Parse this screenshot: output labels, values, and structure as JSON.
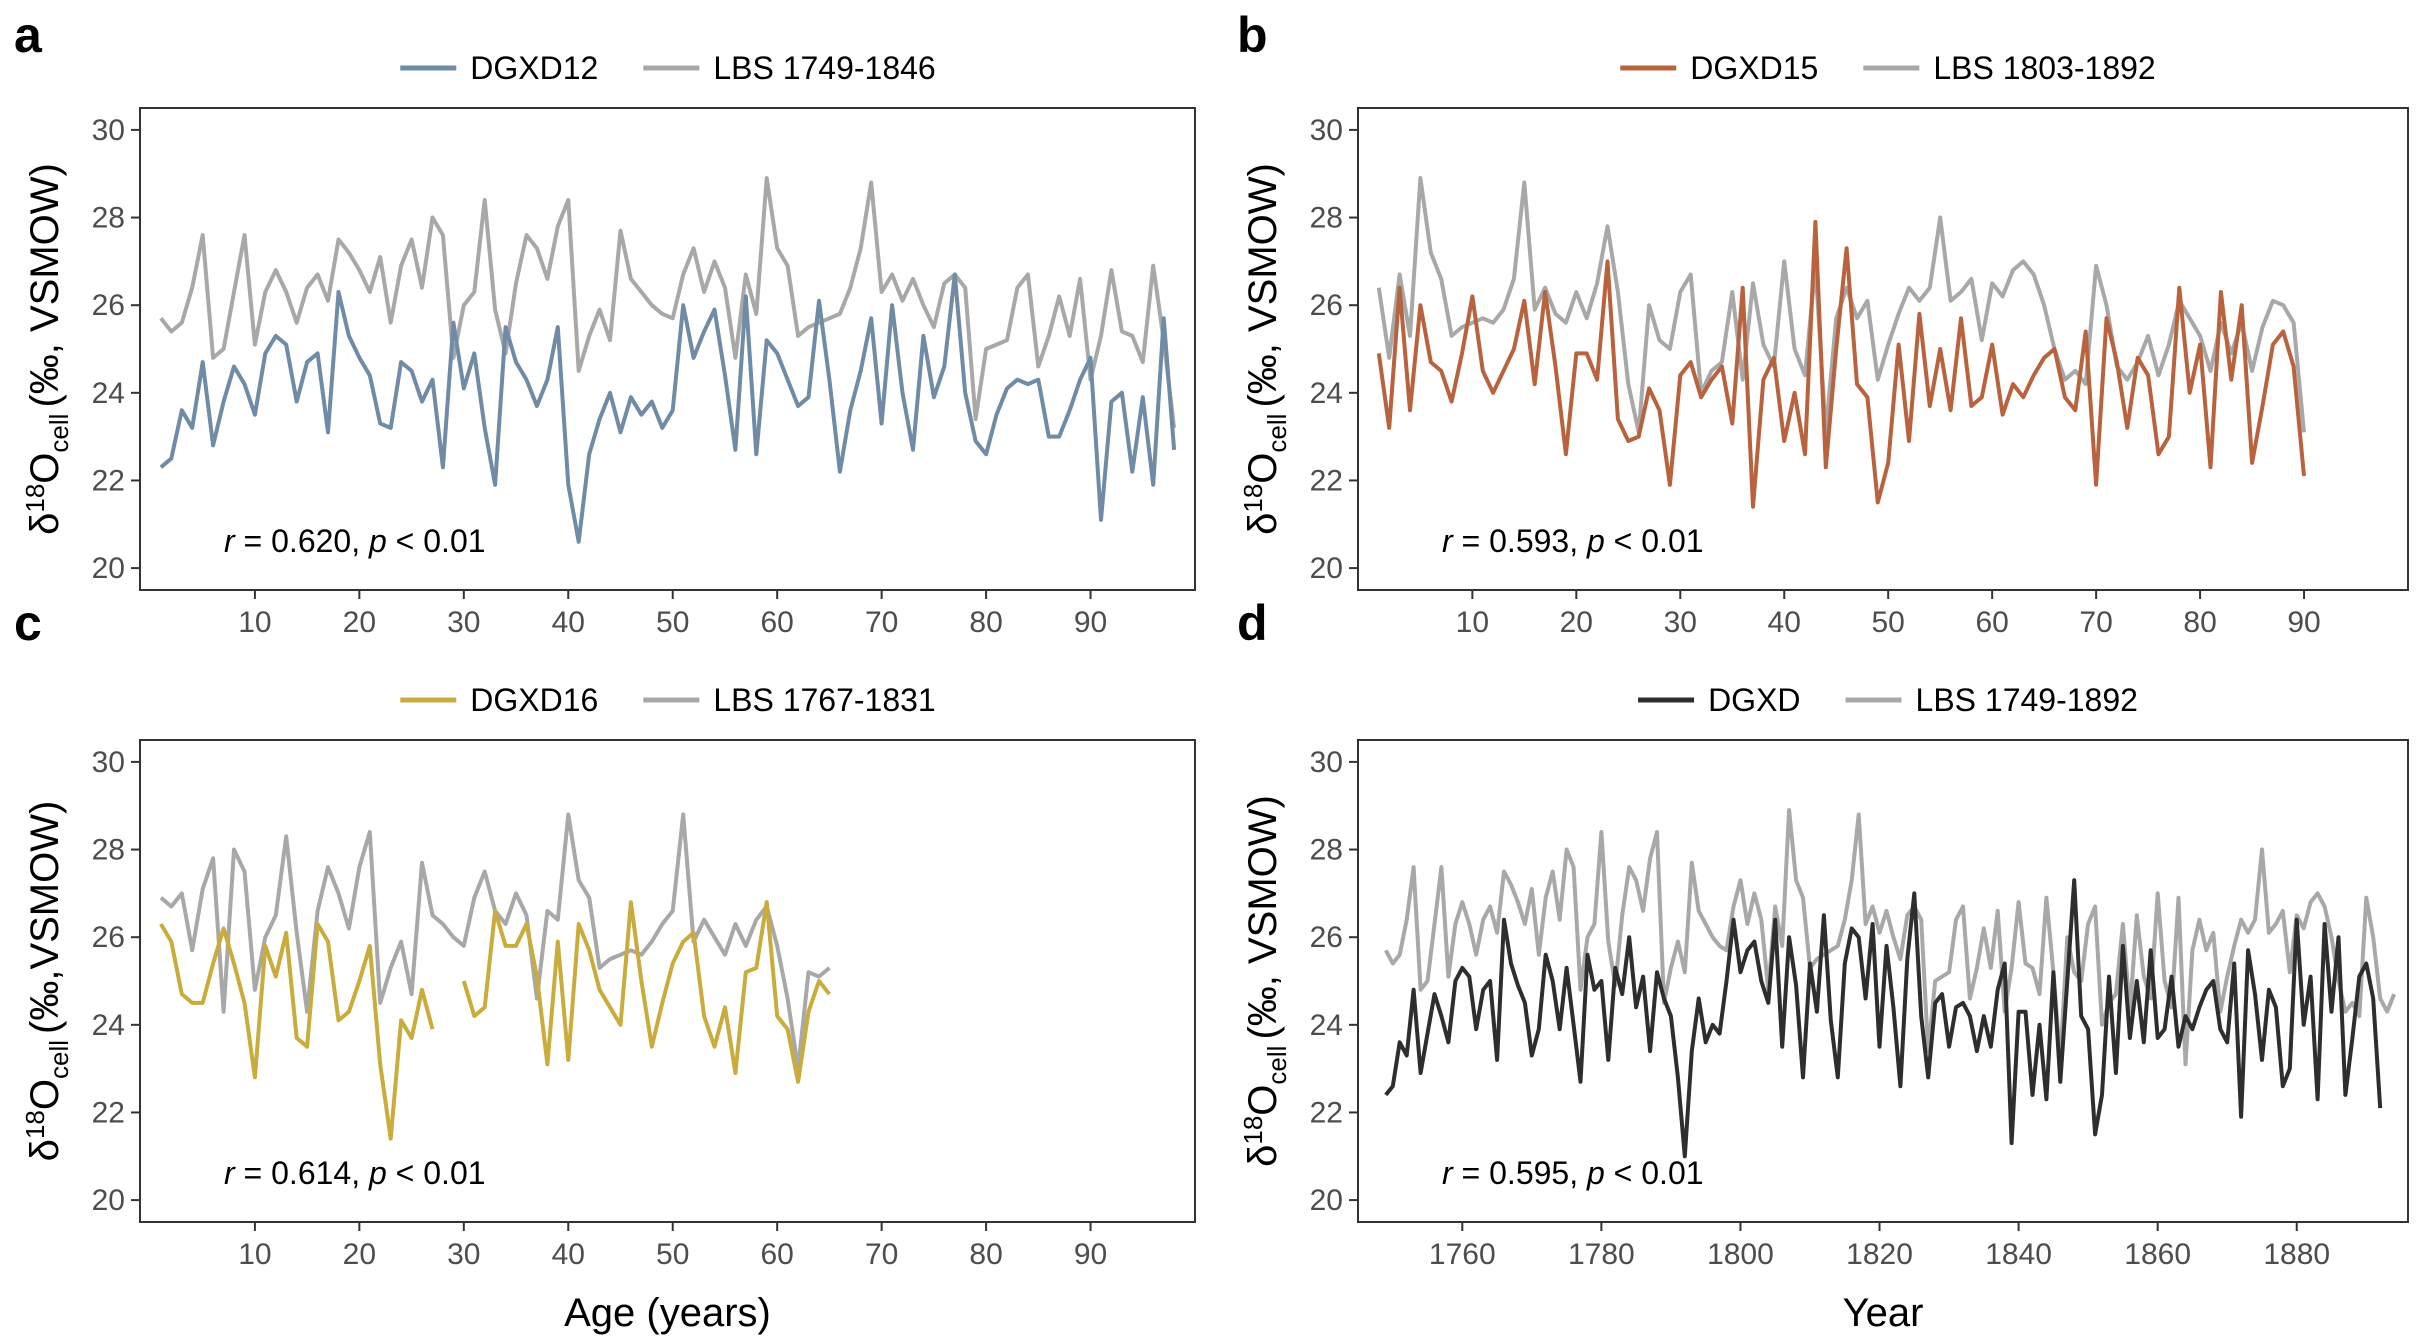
{
  "colors": {
    "gray": "#a8a8a8",
    "blue": "#6f8ba6",
    "orange": "#b8633e",
    "yellow": "#c9ac3c",
    "black": "#2e2e2e"
  },
  "chart_data": [
    {
      "type": "line",
      "panel": "a",
      "xlabel": "",
      "ylabel": "δ18Ocell (‰, VSMOW)",
      "ylabel_parts": {
        "delta": "δ",
        "sup": "18",
        "O": "O",
        "sub": "cell",
        "rest": "(‰, VSMOW)"
      },
      "xlim": [
        -1,
        100
      ],
      "ylim": [
        19.5,
        30.5
      ],
      "xticks": [
        10,
        20,
        30,
        40,
        50,
        60,
        70,
        80,
        90
      ],
      "yticks": [
        20,
        22,
        24,
        26,
        28,
        30
      ],
      "stat": {
        "r": "r",
        "r_val": " = 0.620, ",
        "p": "p",
        "p_val": " < 0.01"
      },
      "series": [
        {
          "name": "DGXD12",
          "color": "blue",
          "x_start": 1,
          "values": [
            22.3,
            22.5,
            23.6,
            23.2,
            24.7,
            22.8,
            23.8,
            24.6,
            24.2,
            23.5,
            24.9,
            25.3,
            25.1,
            23.8,
            24.7,
            24.9,
            23.1,
            26.3,
            25.3,
            24.8,
            24.4,
            23.3,
            23.2,
            24.7,
            24.5,
            23.8,
            24.3,
            22.3,
            25.6,
            24.1,
            24.9,
            23.2,
            21.9,
            25.5,
            24.7,
            24.3,
            23.7,
            24.3,
            25.5,
            21.9,
            20.6,
            22.6,
            23.4,
            24.0,
            23.1,
            23.9,
            23.5,
            23.8,
            23.2,
            23.6,
            26.0,
            24.8,
            25.4,
            25.9,
            24.4,
            22.7,
            26.2,
            22.6,
            25.2,
            24.9,
            24.3,
            23.7,
            23.9,
            26.1,
            24.3,
            22.2,
            23.6,
            24.5,
            25.7,
            23.3,
            26.0,
            24.0,
            22.7,
            25.3,
            23.9,
            24.6,
            26.7,
            24.0,
            22.9,
            22.6,
            23.5,
            24.1,
            24.3,
            24.2,
            24.3,
            23.0,
            23.0,
            23.6,
            24.3,
            24.8,
            21.1,
            23.8,
            24.0,
            22.2,
            23.9,
            21.9,
            25.7,
            22.7
          ]
        },
        {
          "name": "LBS 1749-1846",
          "color": "gray",
          "x_start": 1,
          "values": [
            25.7,
            25.4,
            25.6,
            26.4,
            27.6,
            24.8,
            25.0,
            26.3,
            27.6,
            25.1,
            26.3,
            26.8,
            26.3,
            25.6,
            26.4,
            26.7,
            26.1,
            27.5,
            27.2,
            26.8,
            26.3,
            27.1,
            25.6,
            26.9,
            27.5,
            26.4,
            28.0,
            27.6,
            24.8,
            26.0,
            26.3,
            28.4,
            25.9,
            24.9,
            26.5,
            27.6,
            27.3,
            26.6,
            27.8,
            28.4,
            24.5,
            25.3,
            25.9,
            25.2,
            27.7,
            26.6,
            26.3,
            26.0,
            25.8,
            25.7,
            26.7,
            27.3,
            26.3,
            27.0,
            26.4,
            24.8,
            26.7,
            25.8,
            28.9,
            27.3,
            26.9,
            25.3,
            25.5,
            25.6,
            25.7,
            25.8,
            26.4,
            27.3,
            28.8,
            26.3,
            26.7,
            26.1,
            26.6,
            26.0,
            25.5,
            26.5,
            26.7,
            26.4,
            23.4,
            25.0,
            25.1,
            25.2,
            26.4,
            26.7,
            24.6,
            25.3,
            26.2,
            25.3,
            26.6,
            24.3,
            25.3,
            26.8,
            25.4,
            25.3,
            24.7,
            26.9,
            25.2,
            23.2
          ]
        }
      ]
    },
    {
      "type": "line",
      "panel": "b",
      "xlabel": "",
      "ylabel": "δ18Ocell (‰, VSMOW)",
      "ylabel_parts": {
        "delta": "δ",
        "sup": "18",
        "O": "O",
        "sub": "cell",
        "rest": "(‰, VSMOW)"
      },
      "xlim": [
        -1,
        100
      ],
      "ylim": [
        19.5,
        30.5
      ],
      "xticks": [
        10,
        20,
        30,
        40,
        50,
        60,
        70,
        80,
        90
      ],
      "yticks": [
        20,
        22,
        24,
        26,
        28,
        30
      ],
      "stat": {
        "r": "r",
        "r_val": " = 0.593, ",
        "p": "p",
        "p_val": " < 0.01"
      },
      "series": [
        {
          "name": "DGXD15",
          "color": "orange",
          "x_start": 1,
          "values": [
            24.9,
            23.2,
            26.4,
            23.6,
            26.0,
            24.7,
            24.5,
            23.8,
            24.9,
            26.2,
            24.5,
            24.0,
            24.5,
            25.0,
            26.1,
            24.2,
            26.3,
            24.6,
            22.6,
            24.9,
            24.9,
            24.3,
            27.0,
            23.4,
            22.9,
            23.0,
            24.1,
            23.6,
            21.9,
            24.4,
            24.7,
            23.9,
            24.3,
            24.6,
            23.3,
            26.4,
            21.4,
            24.3,
            24.8,
            22.9,
            24.0,
            22.6,
            27.9,
            22.3,
            25.0,
            27.3,
            24.2,
            23.9,
            21.5,
            22.4,
            25.1,
            22.9,
            25.8,
            23.7,
            25.0,
            23.6,
            25.7,
            23.7,
            23.9,
            25.1,
            23.5,
            24.2,
            23.9,
            24.4,
            24.8,
            25.0,
            23.9,
            23.6,
            25.4,
            21.9,
            25.7,
            24.7,
            23.2,
            24.8,
            24.4,
            22.6,
            23.0,
            26.4,
            24.0,
            25.1,
            22.3,
            26.3,
            24.3,
            26.0,
            22.4,
            23.7,
            25.1,
            25.4,
            24.6,
            22.1
          ]
        },
        {
          "name": "LBS 1803-1892",
          "color": "gray",
          "x_start": 1,
          "values": [
            26.4,
            24.8,
            26.7,
            25.3,
            28.9,
            27.2,
            26.6,
            25.3,
            25.5,
            25.6,
            25.7,
            25.6,
            25.9,
            26.6,
            28.8,
            25.9,
            26.4,
            25.8,
            25.6,
            26.3,
            25.7,
            26.5,
            27.8,
            26.3,
            24.2,
            23.1,
            26.0,
            25.2,
            25.0,
            26.3,
            26.7,
            24.0,
            24.5,
            24.7,
            26.3,
            24.3,
            26.5,
            25.1,
            24.6,
            27.0,
            25.0,
            24.4,
            26.9,
            23.1,
            25.7,
            26.4,
            25.7,
            26.1,
            24.3,
            25.1,
            25.8,
            26.4,
            26.1,
            26.4,
            28.0,
            26.1,
            26.3,
            26.6,
            25.2,
            26.5,
            26.2,
            26.8,
            27.0,
            26.7,
            26.0,
            25.0,
            24.3,
            24.5,
            24.2,
            26.9,
            26.0,
            24.6,
            24.3,
            24.7,
            25.3,
            24.4,
            25.1,
            26.1,
            25.7,
            25.3,
            24.5,
            25.6,
            24.9,
            25.6,
            24.5,
            25.5,
            26.1,
            26.0,
            25.6,
            23.1
          ]
        }
      ]
    },
    {
      "type": "line",
      "panel": "c",
      "xlabel": "Age (years)",
      "ylabel": "δ18Ocell (‰,VSMOW)",
      "ylabel_parts": {
        "delta": "δ",
        "sup": "18",
        "O": "O",
        "sub": "cell",
        "rest": "(‰,VSMOW)"
      },
      "xlim": [
        -1,
        100
      ],
      "ylim": [
        19.5,
        30.5
      ],
      "xticks": [
        10,
        20,
        30,
        40,
        50,
        60,
        70,
        80,
        90
      ],
      "yticks": [
        20,
        22,
        24,
        26,
        28,
        30
      ],
      "stat": {
        "r": "r",
        "r_val": " = 0.614, ",
        "p": "p",
        "p_val": " < 0.01"
      },
      "series": [
        {
          "name": "DGXD16",
          "color": "yellow",
          "x_start": 1,
          "values": [
            26.3,
            25.9,
            24.7,
            24.5,
            24.5,
            25.4,
            26.2,
            25.4,
            24.5,
            22.8,
            25.8,
            25.1,
            26.1,
            23.7,
            23.5,
            26.3,
            25.9,
            24.1,
            24.3,
            25.0,
            25.8,
            23.1,
            21.4,
            24.1,
            23.7,
            24.8,
            23.9,
            null,
            null,
            25.0,
            24.2,
            24.4,
            26.6,
            25.8,
            25.8,
            26.3,
            25.1,
            23.1,
            25.9,
            23.2,
            26.3,
            25.7,
            24.8,
            24.4,
            24.0,
            26.8,
            25.0,
            23.5,
            24.5,
            25.4,
            25.9,
            26.1,
            24.2,
            23.5,
            24.4,
            22.9,
            25.2,
            25.3,
            26.8,
            24.2,
            23.9,
            22.7,
            24.3,
            25.0,
            24.7
          ]
        },
        {
          "name": "LBS 1767-1831",
          "color": "gray",
          "x_start": 1,
          "values": [
            26.9,
            26.7,
            27.0,
            25.7,
            27.1,
            27.8,
            24.3,
            28.0,
            27.5,
            24.8,
            26.0,
            26.5,
            28.3,
            26.1,
            24.3,
            26.6,
            27.6,
            27.0,
            26.2,
            27.6,
            28.4,
            24.5,
            25.3,
            25.9,
            24.7,
            27.7,
            26.5,
            26.3,
            26.0,
            25.8,
            26.9,
            27.5,
            26.6,
            26.3,
            27.0,
            26.5,
            24.6,
            26.6,
            26.4,
            28.8,
            27.3,
            26.9,
            25.3,
            25.5,
            25.6,
            25.7,
            25.6,
            25.9,
            26.3,
            26.6,
            28.8,
            25.9,
            26.4,
            26.0,
            25.6,
            26.3,
            25.8,
            26.4,
            26.7,
            25.8,
            24.6,
            23.0,
            25.2,
            25.1,
            25.3
          ]
        }
      ]
    },
    {
      "type": "line",
      "panel": "d",
      "xlabel": "Year",
      "ylabel": "δ18Ocell (‰, VSMOW)",
      "ylabel_parts": {
        "delta": "δ",
        "sup": "18",
        "O": "O",
        "sub": "cell",
        "rest": "(‰, VSMOW)"
      },
      "xlim": [
        1745,
        1896
      ],
      "ylim": [
        19.5,
        30.5
      ],
      "xticks": [
        1760,
        1780,
        1800,
        1820,
        1840,
        1860,
        1880
      ],
      "yticks": [
        20,
        22,
        24,
        26,
        28,
        30
      ],
      "stat": {
        "r": "r",
        "r_val": " = 0.595, ",
        "p": "p",
        "p_val": " < 0.01"
      },
      "series": [
        {
          "name": "DGXD",
          "color": "black",
          "x_start": 1749,
          "values": [
            22.4,
            22.6,
            23.6,
            23.3,
            24.8,
            22.9,
            23.8,
            24.7,
            24.2,
            23.6,
            25.0,
            25.3,
            25.1,
            23.9,
            24.8,
            25.0,
            23.2,
            26.4,
            25.4,
            24.9,
            24.5,
            23.3,
            23.9,
            25.6,
            25.0,
            23.9,
            25.3,
            24.0,
            22.7,
            25.6,
            24.8,
            25.0,
            23.2,
            25.3,
            24.7,
            26.0,
            24.4,
            25.1,
            23.4,
            25.2,
            24.6,
            24.2,
            22.8,
            21.0,
            23.4,
            24.6,
            23.6,
            24.0,
            23.8,
            25.0,
            26.4,
            25.2,
            25.7,
            25.9,
            25.0,
            24.5,
            26.4,
            23.5,
            26.0,
            24.9,
            22.8,
            25.4,
            24.3,
            26.5,
            24.1,
            22.8,
            25.4,
            26.2,
            26.0,
            24.6,
            26.3,
            23.5,
            25.8,
            24.4,
            22.6,
            25.5,
            27.0,
            24.2,
            22.8,
            24.5,
            24.7,
            23.5,
            24.4,
            24.5,
            24.2,
            23.4,
            24.2,
            23.5,
            24.8,
            25.4,
            21.3,
            24.3,
            24.3,
            22.4,
            24.0,
            22.3,
            25.2,
            22.7,
            25.0,
            27.3,
            24.2,
            23.9,
            21.5,
            22.4,
            25.1,
            22.9,
            25.8,
            23.7,
            25.0,
            23.6,
            25.7,
            23.7,
            23.9,
            25.1,
            23.5,
            24.2,
            23.9,
            24.4,
            24.8,
            25.0,
            23.9,
            23.6,
            25.4,
            21.9,
            25.7,
            24.7,
            23.2,
            24.8,
            24.4,
            22.6,
            23.0,
            26.4,
            24.0,
            25.1,
            22.3,
            26.3,
            24.3,
            26.0,
            22.4,
            23.7,
            25.1,
            25.4,
            24.6,
            22.1
          ]
        },
        {
          "name": "LBS 1749-1892",
          "color": "gray",
          "x_start": 1749,
          "values": [
            25.7,
            25.4,
            25.6,
            26.4,
            27.6,
            24.8,
            25.0,
            26.3,
            27.6,
            25.1,
            26.3,
            26.8,
            26.3,
            25.6,
            26.4,
            26.7,
            26.1,
            27.5,
            27.2,
            26.8,
            26.3,
            27.1,
            25.6,
            26.9,
            27.5,
            26.4,
            28.0,
            27.6,
            24.8,
            26.0,
            26.3,
            28.4,
            25.9,
            24.9,
            26.5,
            27.6,
            27.3,
            26.6,
            27.8,
            28.4,
            24.5,
            25.3,
            25.9,
            25.2,
            27.7,
            26.6,
            26.3,
            26.0,
            25.8,
            25.7,
            26.7,
            27.3,
            26.3,
            27.0,
            26.4,
            24.8,
            26.7,
            25.8,
            28.9,
            27.3,
            26.9,
            25.3,
            25.5,
            25.6,
            25.7,
            25.8,
            26.4,
            27.3,
            28.8,
            26.3,
            26.7,
            26.1,
            26.6,
            26.0,
            25.5,
            26.5,
            26.7,
            26.4,
            23.4,
            25.0,
            25.1,
            25.2,
            26.4,
            26.7,
            24.6,
            25.3,
            26.2,
            25.3,
            26.6,
            24.3,
            25.3,
            26.8,
            25.4,
            25.3,
            24.7,
            26.9,
            25.2,
            23.2,
            26.0,
            25.2,
            25.0,
            26.3,
            26.7,
            24.0,
            24.5,
            24.7,
            26.3,
            24.3,
            26.5,
            25.1,
            24.6,
            27.0,
            25.0,
            24.4,
            26.9,
            23.1,
            25.7,
            26.4,
            25.7,
            26.1,
            24.3,
            25.1,
            25.8,
            26.4,
            26.1,
            26.4,
            28.0,
            26.1,
            26.3,
            26.6,
            25.2,
            26.5,
            26.2,
            26.8,
            27.0,
            26.7,
            26.0,
            25.0,
            24.3,
            24.5,
            24.2,
            26.9,
            26.0,
            24.6,
            24.3,
            24.7
          ]
        }
      ]
    }
  ]
}
